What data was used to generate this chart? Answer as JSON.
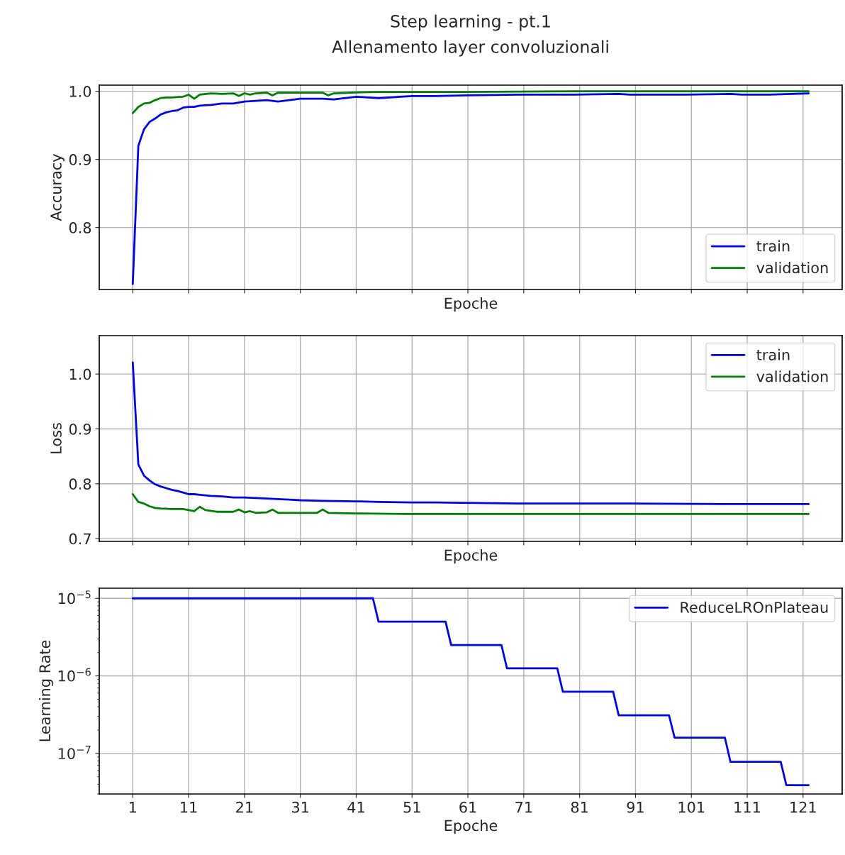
{
  "chart_data": [
    {
      "type": "line",
      "title": "Step learning - pt.1",
      "subtitle": "Allenamento layer convoluzionali",
      "xlabel": "Epoche",
      "ylabel": "Accuracy",
      "xlim": [
        -5,
        128
      ],
      "xticks": [
        1,
        11,
        21,
        31,
        41,
        51,
        61,
        71,
        81,
        91,
        101,
        111,
        121
      ],
      "ylim": [
        0.709,
        1.009
      ],
      "yticks": [
        0.8,
        0.9,
        {
          "value": 1,
          "label": "1.0"
        }
      ],
      "grid": true,
      "legend": "bottom right",
      "tick_labels": "y",
      "line_style": "solid",
      "series": [
        {
          "name": "train",
          "color": "#0000ff",
          "x": [
            1,
            2,
            3,
            4,
            5,
            6,
            7,
            8,
            9,
            10,
            11,
            12,
            13,
            15,
            17,
            19,
            21,
            25,
            27,
            29,
            31,
            35,
            37,
            41,
            45,
            51,
            55,
            61,
            70,
            80,
            88,
            90,
            100,
            108,
            110,
            115,
            122
          ],
          "values": [
            0.717,
            0.92,
            0.944,
            0.955,
            0.96,
            0.966,
            0.969,
            0.971,
            0.972,
            0.976,
            0.977,
            0.977,
            0.979,
            0.98,
            0.982,
            0.982,
            0.985,
            0.987,
            0.985,
            0.987,
            0.989,
            0.989,
            0.988,
            0.992,
            0.99,
            0.993,
            0.993,
            0.994,
            0.995,
            0.995,
            0.996,
            0.995,
            0.995,
            0.996,
            0.995,
            0.995,
            0.997
          ]
        },
        {
          "name": "validation",
          "color": "#008000",
          "x": [
            1,
            2,
            3,
            4,
            5,
            6,
            7,
            8,
            10,
            11,
            12,
            13,
            15,
            17,
            19,
            20,
            21,
            22,
            23,
            25,
            26,
            27,
            30,
            35,
            36,
            37,
            40,
            45,
            60,
            80,
            100,
            122
          ],
          "values": [
            0.968,
            0.977,
            0.982,
            0.983,
            0.987,
            0.99,
            0.991,
            0.991,
            0.992,
            0.995,
            0.989,
            0.995,
            0.997,
            0.996,
            0.997,
            0.993,
            0.997,
            0.995,
            0.997,
            0.998,
            0.994,
            0.998,
            0.998,
            0.998,
            0.994,
            0.997,
            0.998,
            0.999,
            0.999,
            1.0,
            1.0,
            1.0
          ]
        }
      ]
    },
    {
      "type": "line",
      "xlabel": "Epoche",
      "ylabel": "Loss",
      "xlim": [
        -5,
        128
      ],
      "xticks": [
        1,
        11,
        21,
        31,
        41,
        51,
        61,
        71,
        81,
        91,
        101,
        111,
        121
      ],
      "ylim": [
        0.695,
        1.07
      ],
      "yticks": [
        0.7,
        0.8,
        0.9,
        {
          "value": 1,
          "label": "1.0"
        }
      ],
      "grid": true,
      "legend": "top right",
      "tick_labels": "y",
      "line_style": "solid",
      "series": [
        {
          "name": "train",
          "color": "#0000ff",
          "x": [
            1,
            2,
            3,
            4,
            5,
            6,
            7,
            8,
            9,
            10,
            11,
            12,
            13,
            15,
            17,
            19,
            21,
            25,
            29,
            31,
            35,
            41,
            45,
            51,
            55,
            70,
            90,
            110,
            122
          ],
          "values": [
            1.021,
            0.835,
            0.815,
            0.806,
            0.799,
            0.795,
            0.792,
            0.789,
            0.787,
            0.784,
            0.781,
            0.781,
            0.78,
            0.778,
            0.777,
            0.775,
            0.775,
            0.773,
            0.771,
            0.77,
            0.769,
            0.768,
            0.767,
            0.766,
            0.766,
            0.764,
            0.764,
            0.763,
            0.763
          ]
        },
        {
          "name": "validation",
          "color": "#008000",
          "x": [
            1,
            2,
            3,
            4,
            5,
            6,
            8,
            10,
            11,
            12,
            13,
            14,
            16,
            18,
            19,
            20,
            21,
            22,
            23,
            25,
            26,
            27,
            30,
            34,
            35,
            36,
            41,
            50,
            70,
            100,
            122
          ],
          "values": [
            0.781,
            0.767,
            0.764,
            0.759,
            0.756,
            0.755,
            0.754,
            0.754,
            0.752,
            0.75,
            0.758,
            0.752,
            0.749,
            0.749,
            0.749,
            0.753,
            0.748,
            0.75,
            0.747,
            0.748,
            0.753,
            0.747,
            0.747,
            0.747,
            0.753,
            0.747,
            0.746,
            0.745,
            0.745,
            0.745,
            0.745
          ]
        }
      ]
    },
    {
      "type": "line",
      "xlabel": "Epoche",
      "ylabel": "Learning Rate",
      "log": "y",
      "xlim": [
        -5,
        128
      ],
      "xticks": [
        1,
        11,
        21,
        31,
        41,
        51,
        61,
        71,
        81,
        91,
        101,
        111,
        121
      ],
      "ylim": [
        3e-08,
        1.35e-05
      ],
      "yticks": [
        {
          "value": 1e-07,
          "label": "10$^{−7}$"
        },
        {
          "value": 1e-06,
          "label": "10$^{−6}$"
        },
        {
          "value": 1e-05,
          "label": "10$^{−5}$"
        }
      ],
      "grid": true,
      "legend": "top right",
      "line_style": "solid",
      "series": [
        {
          "name": "ReduceLROnPlateau",
          "color": "#0000ff",
          "x": [
            1,
            44,
            45,
            57,
            58,
            67,
            68,
            77,
            78,
            87,
            88,
            97,
            98,
            107,
            108,
            117,
            118,
            122
          ],
          "values": [
            1e-05,
            1e-05,
            5e-06,
            5e-06,
            2.5e-06,
            2.5e-06,
            1.25e-06,
            1.25e-06,
            6.25e-07,
            6.25e-07,
            3.1e-07,
            3.1e-07,
            1.6e-07,
            1.6e-07,
            7.8e-08,
            7.8e-08,
            3.9e-08,
            3.9e-08
          ]
        }
      ]
    }
  ]
}
